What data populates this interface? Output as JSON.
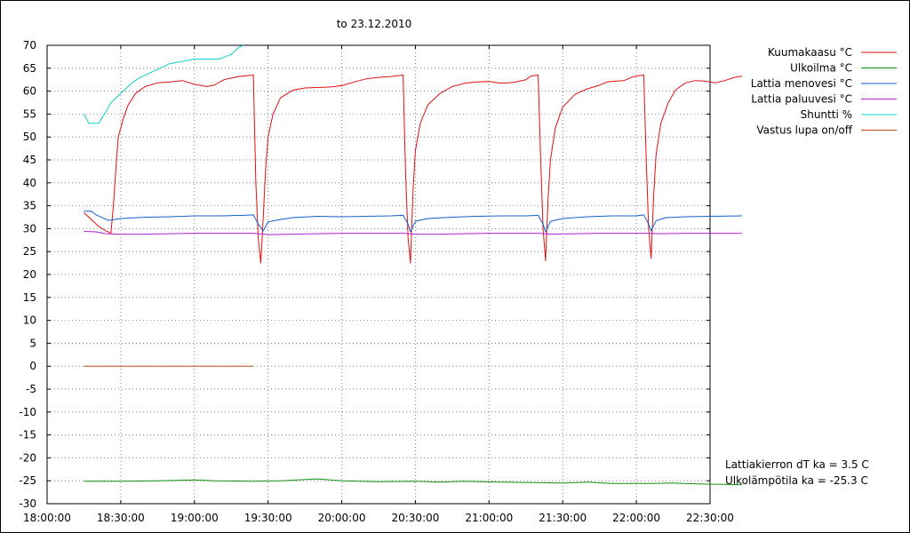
{
  "chart_data": {
    "type": "line",
    "title": "to 23.12.2010",
    "xlabel": "",
    "ylabel": "",
    "x_ticks": [
      "18:00:00",
      "18:30:00",
      "19:00:00",
      "19:30:00",
      "20:00:00",
      "20:30:00",
      "21:00:00",
      "21:30:00",
      "22:00:00",
      "22:30:00"
    ],
    "x_range_minutes": [
      0,
      270
    ],
    "ylim": [
      -30,
      70
    ],
    "y_ticks": [
      70,
      65,
      60,
      55,
      50,
      45,
      40,
      35,
      30,
      25,
      20,
      15,
      10,
      5,
      0,
      -5,
      -10,
      -15,
      -20,
      -25,
      -30
    ],
    "grid": true,
    "legend_position": "right",
    "series": [
      {
        "name": "Kuumakaasu °C",
        "color": "#e01010",
        "points": [
          [
            15,
            33.5
          ],
          [
            18,
            32
          ],
          [
            21,
            30.5
          ],
          [
            24,
            29.5
          ],
          [
            26,
            29
          ],
          [
            27,
            35
          ],
          [
            28,
            43
          ],
          [
            29,
            50
          ],
          [
            31,
            54
          ],
          [
            33,
            57
          ],
          [
            36,
            59.5
          ],
          [
            40,
            61
          ],
          [
            45,
            61.8
          ],
          [
            50,
            62
          ],
          [
            55,
            62.3
          ],
          [
            60,
            61.5
          ],
          [
            65,
            61
          ],
          [
            68,
            61.3
          ],
          [
            72,
            62.5
          ],
          [
            78,
            63.2
          ],
          [
            84,
            63.5
          ],
          [
            85,
            40
          ],
          [
            86,
            28
          ],
          [
            87,
            22.5
          ],
          [
            88,
            32
          ],
          [
            89,
            43
          ],
          [
            90,
            50
          ],
          [
            92,
            55
          ],
          [
            95,
            58.5
          ],
          [
            100,
            60.2
          ],
          [
            105,
            60.7
          ],
          [
            110,
            60.8
          ],
          [
            115,
            60.9
          ],
          [
            120,
            61.2
          ],
          [
            125,
            62
          ],
          [
            130,
            62.7
          ],
          [
            135,
            63
          ],
          [
            140,
            63.2
          ],
          [
            145,
            63.5
          ],
          [
            146,
            42
          ],
          [
            147,
            28
          ],
          [
            148,
            22.5
          ],
          [
            149,
            38
          ],
          [
            150,
            47
          ],
          [
            152,
            53
          ],
          [
            155,
            57
          ],
          [
            160,
            59.5
          ],
          [
            165,
            61
          ],
          [
            170,
            61.7
          ],
          [
            175,
            62
          ],
          [
            180,
            62.1
          ],
          [
            185,
            61.7
          ],
          [
            190,
            61.9
          ],
          [
            195,
            62.5
          ],
          [
            197,
            63.3
          ],
          [
            200,
            63.5
          ],
          [
            201,
            45
          ],
          [
            202,
            30
          ],
          [
            203,
            23
          ],
          [
            204,
            36
          ],
          [
            205,
            45
          ],
          [
            207,
            52
          ],
          [
            210,
            56.5
          ],
          [
            215,
            59.3
          ],
          [
            220,
            60.5
          ],
          [
            225,
            61.3
          ],
          [
            228,
            62
          ],
          [
            232,
            62.2
          ],
          [
            235,
            62.3
          ],
          [
            238,
            63
          ],
          [
            240,
            63.3
          ],
          [
            243,
            63.5
          ],
          [
            244,
            45
          ],
          [
            245,
            30
          ],
          [
            246,
            23.5
          ],
          [
            247,
            37
          ],
          [
            248,
            46
          ],
          [
            250,
            53
          ],
          [
            253,
            57.5
          ],
          [
            256,
            60.3
          ],
          [
            260,
            61.8
          ],
          [
            264,
            62.3
          ],
          [
            268,
            62.2
          ],
          [
            272,
            61.8
          ],
          [
            276,
            62.3
          ],
          [
            280,
            63
          ],
          [
            283,
            63.3
          ]
        ]
      },
      {
        "name": "Ulkoilma °C",
        "color": "#109010",
        "points": [
          [
            15,
            -25.1
          ],
          [
            30,
            -25.1
          ],
          [
            45,
            -25
          ],
          [
            60,
            -24.8
          ],
          [
            68,
            -25
          ],
          [
            84,
            -25.1
          ],
          [
            95,
            -25
          ],
          [
            110,
            -24.6
          ],
          [
            120,
            -25
          ],
          [
            135,
            -25.2
          ],
          [
            150,
            -25.1
          ],
          [
            160,
            -25.3
          ],
          [
            170,
            -25.1
          ],
          [
            185,
            -25.3
          ],
          [
            198,
            -25.4
          ],
          [
            210,
            -25.5
          ],
          [
            220,
            -25.3
          ],
          [
            230,
            -25.6
          ],
          [
            245,
            -25.6
          ],
          [
            255,
            -25.5
          ],
          [
            265,
            -25.7
          ],
          [
            275,
            -25.8
          ],
          [
            283,
            -25.9
          ]
        ]
      },
      {
        "name": "Lattia menovesi °C",
        "color": "#1060d0",
        "points": [
          [
            15,
            33.8
          ],
          [
            18,
            33.8
          ],
          [
            20,
            33
          ],
          [
            25,
            31.8
          ],
          [
            30,
            32.2
          ],
          [
            40,
            32.5
          ],
          [
            50,
            32.6
          ],
          [
            60,
            32.8
          ],
          [
            70,
            32.8
          ],
          [
            80,
            32.9
          ],
          [
            84,
            33
          ],
          [
            86,
            31
          ],
          [
            88,
            29.5
          ],
          [
            90,
            31.5
          ],
          [
            95,
            32
          ],
          [
            100,
            32.4
          ],
          [
            110,
            32.7
          ],
          [
            120,
            32.6
          ],
          [
            130,
            32.7
          ],
          [
            140,
            32.8
          ],
          [
            145,
            32.9
          ],
          [
            147,
            31
          ],
          [
            148,
            29.3
          ],
          [
            150,
            31.6
          ],
          [
            155,
            32.2
          ],
          [
            165,
            32.5
          ],
          [
            175,
            32.7
          ],
          [
            185,
            32.8
          ],
          [
            195,
            32.8
          ],
          [
            200,
            32.9
          ],
          [
            202,
            31
          ],
          [
            203,
            29.3
          ],
          [
            205,
            31.6
          ],
          [
            210,
            32.2
          ],
          [
            220,
            32.6
          ],
          [
            230,
            32.8
          ],
          [
            240,
            32.8
          ],
          [
            243,
            33
          ],
          [
            245,
            31
          ],
          [
            246,
            29.5
          ],
          [
            248,
            31.7
          ],
          [
            252,
            32.4
          ],
          [
            260,
            32.6
          ],
          [
            270,
            32.7
          ],
          [
            283,
            32.8
          ]
        ]
      },
      {
        "name": "Lattia paluuvesi °C",
        "color": "#b020d0",
        "points": [
          [
            15,
            29.4
          ],
          [
            20,
            29.3
          ],
          [
            24,
            28.9
          ],
          [
            30,
            28.8
          ],
          [
            40,
            28.8
          ],
          [
            50,
            28.9
          ],
          [
            60,
            29
          ],
          [
            70,
            29
          ],
          [
            84,
            29
          ],
          [
            90,
            28.7
          ],
          [
            100,
            28.8
          ],
          [
            110,
            28.9
          ],
          [
            120,
            29
          ],
          [
            130,
            29
          ],
          [
            145,
            29
          ],
          [
            150,
            28.8
          ],
          [
            160,
            28.8
          ],
          [
            170,
            28.9
          ],
          [
            180,
            29
          ],
          [
            190,
            29
          ],
          [
            200,
            29
          ],
          [
            205,
            28.8
          ],
          [
            215,
            28.9
          ],
          [
            225,
            29
          ],
          [
            235,
            29
          ],
          [
            245,
            29
          ],
          [
            250,
            28.9
          ],
          [
            260,
            29
          ],
          [
            270,
            29
          ],
          [
            283,
            29
          ]
        ]
      },
      {
        "name": "Shuntti %",
        "color": "#10d0d0",
        "points": [
          [
            15,
            55
          ],
          [
            17,
            53
          ],
          [
            21,
            53
          ],
          [
            24,
            55.5
          ],
          [
            26,
            57.5
          ],
          [
            29,
            59
          ],
          [
            32,
            60.5
          ],
          [
            35,
            62
          ],
          [
            38,
            63
          ],
          [
            42,
            64
          ],
          [
            46,
            65
          ],
          [
            50,
            66
          ],
          [
            55,
            66.5
          ],
          [
            60,
            67
          ],
          [
            65,
            67
          ],
          [
            70,
            67
          ],
          [
            75,
            68
          ],
          [
            78,
            69.5
          ],
          [
            80,
            70
          ]
        ]
      },
      {
        "name": "Vastus lupa on/off",
        "color": "#c05010",
        "points": [
          [
            15,
            0
          ],
          [
            84,
            0
          ]
        ]
      }
    ],
    "annotations": [
      "Lattiakierron dT ka = 3.5 C",
      "Ulkolämpötila ka = -25.3 C"
    ]
  }
}
